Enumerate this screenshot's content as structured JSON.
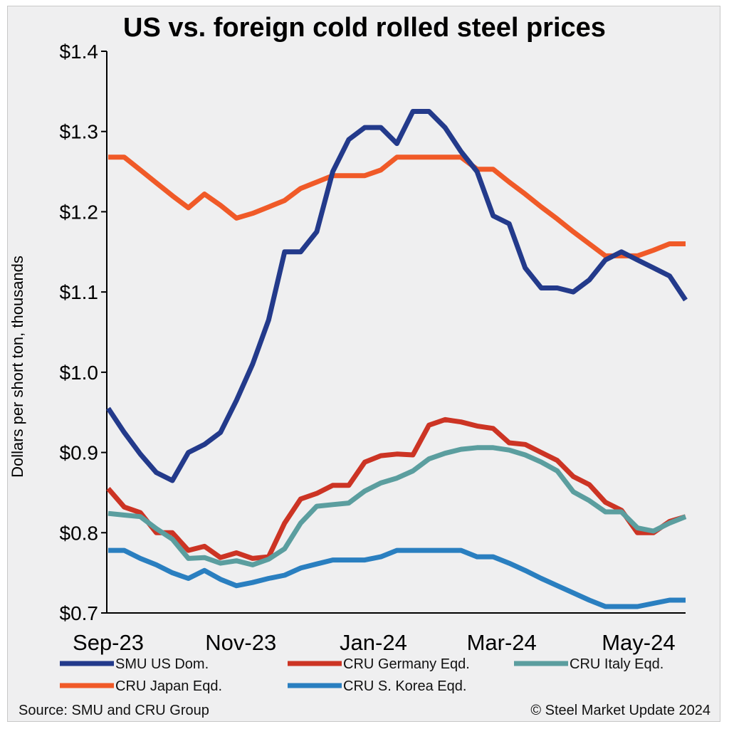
{
  "chart_data": {
    "type": "line",
    "title": "US vs. foreign cold rolled steel prices",
    "ylabel": "Dollars per short ton, thousands",
    "xlabel": "",
    "ylim": [
      0.7,
      1.4
    ],
    "yticks": [
      {
        "value": 0.7,
        "label": "$0.7"
      },
      {
        "value": 0.8,
        "label": "$0.8"
      },
      {
        "value": 0.9,
        "label": "$0.9"
      },
      {
        "value": 1.0,
        "label": "$1.0"
      },
      {
        "value": 1.1,
        "label": "$1.1"
      },
      {
        "value": 1.2,
        "label": "$1.2"
      },
      {
        "value": 1.3,
        "label": "$1.3"
      },
      {
        "value": 1.4,
        "label": "$1.4"
      }
    ],
    "x_tick_labels": [
      "Sep-23",
      "Nov-23",
      "Jan-24",
      "Mar-24",
      "May-24"
    ],
    "grid": false,
    "legend_position": "bottom",
    "series": [
      {
        "name": "SMU US Dom.",
        "color": "#233a8b",
        "values": [
          0.955,
          0.925,
          0.898,
          0.875,
          0.865,
          0.9,
          0.91,
          0.925,
          0.965,
          1.01,
          1.065,
          1.15,
          1.15,
          1.175,
          1.25,
          1.29,
          1.305,
          1.305,
          1.285,
          1.325,
          1.325,
          1.305,
          1.275,
          1.25,
          1.195,
          1.185,
          1.13,
          1.105,
          1.105,
          1.1,
          1.115,
          1.14,
          1.15,
          1.14,
          1.13,
          1.12,
          1.09
        ]
      },
      {
        "name": "CRU Germany Eqd.",
        "color": "#cc3424",
        "values": [
          0.855,
          0.832,
          0.825,
          0.8,
          0.8,
          0.778,
          0.783,
          0.769,
          0.775,
          0.768,
          0.77,
          0.812,
          0.842,
          0.849,
          0.859,
          0.859,
          0.888,
          0.896,
          0.898,
          0.897,
          0.934,
          0.941,
          0.938,
          0.933,
          0.93,
          0.912,
          0.91,
          0.9,
          0.89,
          0.87,
          0.86,
          0.838,
          0.828,
          0.8,
          0.8,
          0.814,
          0.82
        ]
      },
      {
        "name": "CRU Italy Eqd.",
        "color": "#5b9e9f",
        "values": [
          0.824,
          0.822,
          0.82,
          0.805,
          0.792,
          0.768,
          0.769,
          0.762,
          0.765,
          0.76,
          0.767,
          0.78,
          0.812,
          0.833,
          0.835,
          0.837,
          0.852,
          0.862,
          0.868,
          0.877,
          0.892,
          0.899,
          0.904,
          0.906,
          0.906,
          0.903,
          0.897,
          0.888,
          0.877,
          0.851,
          0.84,
          0.826,
          0.826,
          0.806,
          0.802,
          0.812,
          0.82
        ]
      },
      {
        "name": "CRU Japan Eqd.",
        "color": "#f05a28",
        "values": [
          1.268,
          1.268,
          1.252,
          1.236,
          1.22,
          1.205,
          1.222,
          1.208,
          1.192,
          1.198,
          1.206,
          1.214,
          1.229,
          1.237,
          1.245,
          1.245,
          1.245,
          1.252,
          1.268,
          1.268,
          1.268,
          1.268,
          1.268,
          1.253,
          1.253,
          1.237,
          1.222,
          1.206,
          1.191,
          1.175,
          1.16,
          1.145,
          1.145,
          1.145,
          1.152,
          1.16,
          1.16
        ]
      },
      {
        "name": "CRU S. Korea Eqd.",
        "color": "#2a7fc0",
        "values": [
          0.778,
          0.778,
          0.768,
          0.76,
          0.75,
          0.743,
          0.753,
          0.742,
          0.734,
          0.738,
          0.743,
          0.747,
          0.756,
          0.761,
          0.766,
          0.766,
          0.766,
          0.77,
          0.778,
          0.778,
          0.778,
          0.778,
          0.778,
          0.77,
          0.77,
          0.762,
          0.753,
          0.743,
          0.734,
          0.725,
          0.716,
          0.708,
          0.708,
          0.708,
          0.712,
          0.716,
          0.716
        ]
      }
    ]
  },
  "footer": {
    "source": "Source: SMU and CRU Group",
    "copyright": "© Steel Market Update 2024"
  }
}
